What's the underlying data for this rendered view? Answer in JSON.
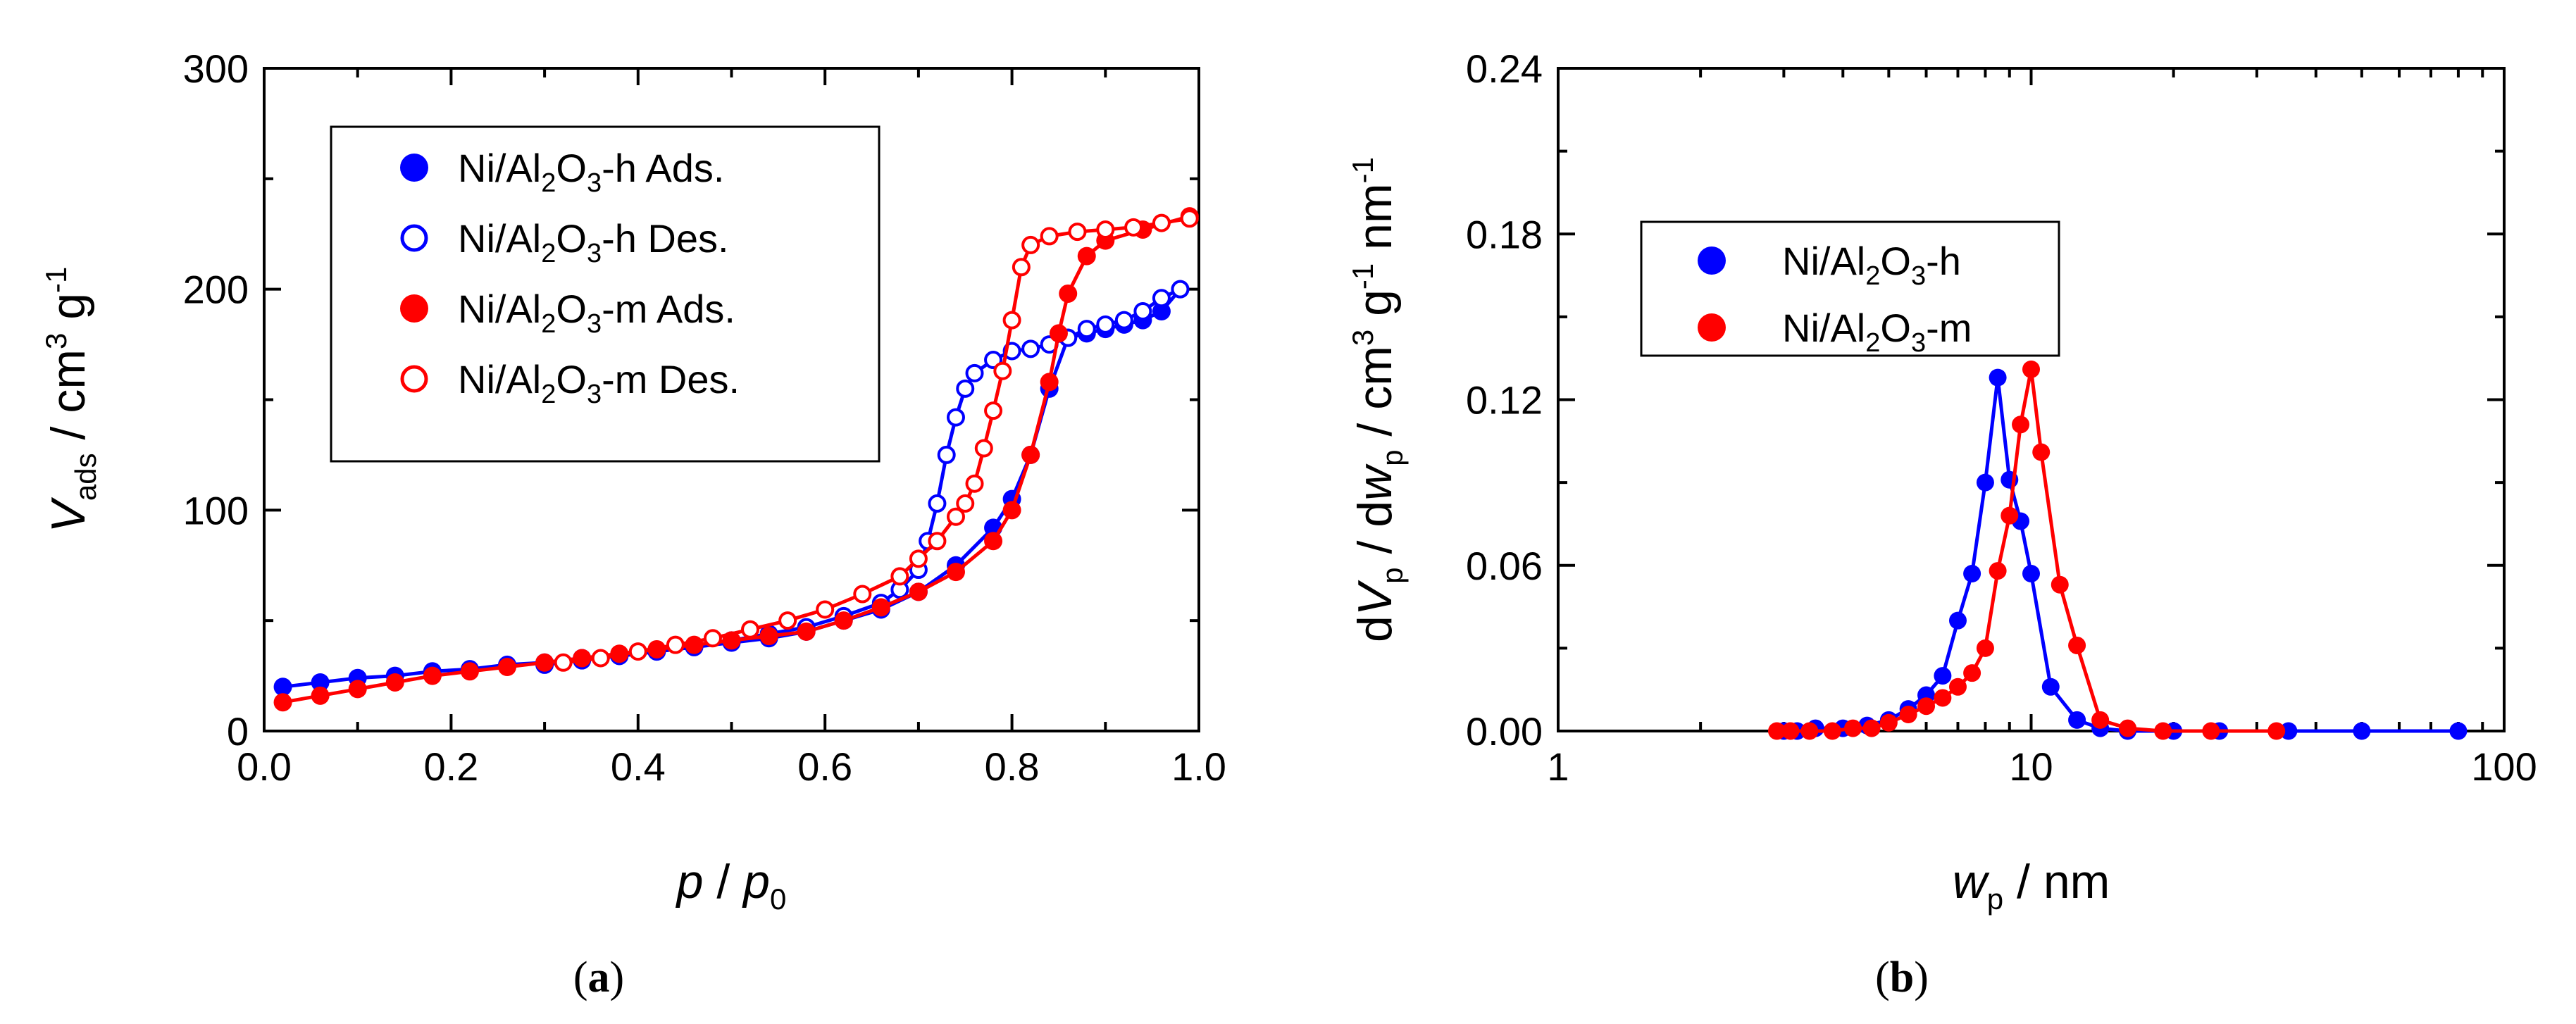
{
  "chart_data": [
    {
      "type": "scatter",
      "panel_label": "a",
      "xlabel": {
        "main": "p",
        "sep": " / ",
        "main2": "p",
        "sub": "0"
      },
      "ylabel": {
        "main": "V",
        "sub": "ads",
        "unit": " / cm",
        "sup1": "3",
        "mid": " g",
        "sup2": "-1"
      },
      "xlim": [
        0.0,
        1.0
      ],
      "ylim": [
        0,
        300
      ],
      "x_scale": "linear",
      "x_ticks": [
        "0.0",
        "0.2",
        "0.4",
        "0.6",
        "0.8",
        "1.0"
      ],
      "y_ticks": [
        "0",
        "100",
        "200",
        "300"
      ],
      "legend_placement": "top-left",
      "series": [
        {
          "name": "Ni/Al2O3-h Ads.",
          "legend_parts": [
            "Ni/Al",
            "2",
            "O",
            "3",
            "-h Ads."
          ],
          "color": "#0000ff",
          "filled": true,
          "x": [
            0.02,
            0.06,
            0.1,
            0.14,
            0.18,
            0.22,
            0.26,
            0.3,
            0.34,
            0.38,
            0.42,
            0.46,
            0.5,
            0.54,
            0.58,
            0.62,
            0.66,
            0.7,
            0.74,
            0.78,
            0.8,
            0.82,
            0.84,
            0.86,
            0.88,
            0.9,
            0.92,
            0.94,
            0.96,
            0.98
          ],
          "y": [
            20,
            22,
            24,
            25,
            27,
            28,
            30,
            31,
            33,
            34,
            36,
            38,
            40,
            42,
            45,
            50,
            55,
            63,
            75,
            92,
            105,
            125,
            155,
            178,
            180,
            182,
            184,
            186,
            190,
            200
          ]
        },
        {
          "name": "Ni/Al2O3-h Des.",
          "legend_parts": [
            "Ni/Al",
            "2",
            "O",
            "3",
            "-h Des."
          ],
          "color": "#0000ff",
          "filled": false,
          "x": [
            0.98,
            0.96,
            0.94,
            0.92,
            0.9,
            0.88,
            0.86,
            0.84,
            0.82,
            0.8,
            0.78,
            0.76,
            0.75,
            0.74,
            0.73,
            0.72,
            0.71,
            0.7,
            0.68,
            0.66,
            0.62,
            0.58,
            0.54,
            0.5,
            0.46,
            0.42,
            0.38,
            0.34,
            0.3
          ],
          "y": [
            200,
            196,
            190,
            186,
            184,
            182,
            178,
            175,
            173,
            172,
            168,
            162,
            155,
            142,
            125,
            103,
            86,
            73,
            64,
            58,
            52,
            47,
            44,
            41,
            38,
            36,
            34,
            32,
            30
          ]
        },
        {
          "name": "Ni/Al2O3-m Ads.",
          "legend_parts": [
            "Ni/Al",
            "2",
            "O",
            "3",
            "-m Ads."
          ],
          "color": "#ff0000",
          "filled": true,
          "x": [
            0.02,
            0.06,
            0.1,
            0.14,
            0.18,
            0.22,
            0.26,
            0.3,
            0.34,
            0.38,
            0.42,
            0.46,
            0.5,
            0.54,
            0.58,
            0.62,
            0.66,
            0.7,
            0.74,
            0.78,
            0.8,
            0.82,
            0.84,
            0.85,
            0.86,
            0.88,
            0.9,
            0.94,
            0.99
          ],
          "y": [
            13,
            16,
            19,
            22,
            25,
            27,
            29,
            31,
            33,
            35,
            37,
            39,
            41,
            43,
            45,
            50,
            56,
            63,
            72,
            86,
            100,
            125,
            158,
            180,
            198,
            215,
            222,
            227,
            233
          ]
        },
        {
          "name": "Ni/Al2O3-m Des.",
          "legend_parts": [
            "Ni/Al",
            "2",
            "O",
            "3",
            "-m Des."
          ],
          "color": "#ff0000",
          "filled": false,
          "x": [
            0.99,
            0.96,
            0.93,
            0.9,
            0.87,
            0.84,
            0.82,
            0.81,
            0.8,
            0.79,
            0.78,
            0.77,
            0.76,
            0.75,
            0.74,
            0.72,
            0.7,
            0.68,
            0.64,
            0.6,
            0.56,
            0.52,
            0.48,
            0.44,
            0.4,
            0.36,
            0.32
          ],
          "y": [
            232,
            230,
            228,
            227,
            226,
            224,
            220,
            210,
            186,
            163,
            145,
            128,
            112,
            103,
            97,
            86,
            78,
            70,
            62,
            55,
            50,
            46,
            42,
            39,
            36,
            33,
            31
          ]
        }
      ]
    },
    {
      "type": "line",
      "panel_label": "b",
      "xlabel": {
        "main": "w",
        "sub": "p",
        "unit": " / nm"
      },
      "ylabel": {
        "pre": "d",
        "main": "V",
        "sub": "p",
        "sep": " / d",
        "main2": "w",
        "sub2": "p",
        "unit": " / cm",
        "sup1": "3",
        "mid": " g",
        "sup2": "-1",
        "end": " nm",
        "sup3": "-1"
      },
      "xlim": [
        1,
        100
      ],
      "ylim": [
        0,
        0.24
      ],
      "x_scale": "log",
      "x_ticks": [
        "1",
        "10",
        "100"
      ],
      "y_ticks": [
        "0.00",
        "0.06",
        "0.12",
        "0.18",
        "0.24"
      ],
      "legend_placement": "top-left",
      "series": [
        {
          "name": "Ni/Al2O3-h",
          "legend_parts": [
            "Ni/Al",
            "2",
            "O",
            "3",
            "-h"
          ],
          "color": "#0000ff",
          "filled": true,
          "x": [
            3.0,
            3.2,
            3.5,
            4.0,
            4.5,
            5.0,
            5.5,
            6.0,
            6.5,
            7.0,
            7.5,
            8.0,
            8.5,
            9.0,
            9.5,
            10.0,
            11.0,
            12.5,
            14,
            16,
            20,
            25,
            35,
            50,
            80
          ],
          "y": [
            0.0,
            0.0,
            0.001,
            0.001,
            0.002,
            0.004,
            0.008,
            0.013,
            0.02,
            0.04,
            0.057,
            0.09,
            0.128,
            0.091,
            0.076,
            0.057,
            0.016,
            0.004,
            0.001,
            0.0,
            0.0,
            0.0,
            0.0,
            0.0,
            0.0
          ]
        },
        {
          "name": "Ni/Al2O3-m",
          "legend_parts": [
            "Ni/Al",
            "2",
            "O",
            "3",
            "-m"
          ],
          "color": "#ff0000",
          "filled": true,
          "x": [
            2.9,
            3.1,
            3.4,
            3.8,
            4.2,
            4.6,
            5.0,
            5.5,
            6.0,
            6.5,
            7.0,
            7.5,
            8.0,
            8.5,
            9.0,
            9.5,
            10.0,
            10.5,
            11.5,
            12.5,
            14,
            16,
            19,
            24,
            33
          ],
          "y": [
            0.0,
            0.0,
            0.0,
            0.0,
            0.001,
            0.001,
            0.003,
            0.006,
            0.009,
            0.012,
            0.016,
            0.021,
            0.03,
            0.058,
            0.078,
            0.111,
            0.131,
            0.101,
            0.053,
            0.031,
            0.004,
            0.001,
            0.0,
            0.0,
            0.0
          ]
        }
      ]
    }
  ]
}
